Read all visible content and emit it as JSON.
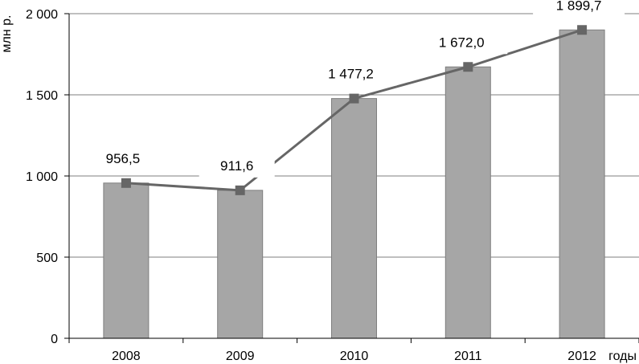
{
  "chart_data": {
    "type": "bar",
    "categories": [
      "2008",
      "2009",
      "2010",
      "2011",
      "2012"
    ],
    "values": [
      956.5,
      911.6,
      1477.2,
      1672.0,
      1899.7
    ],
    "data_labels": [
      "956,5",
      "911,6",
      "1 477,2",
      "1 672,0",
      "1 899,7"
    ],
    "overlay": "line",
    "title": "",
    "xlabel": "годы",
    "ylabel": "млн р.",
    "ylim": [
      0,
      2000
    ],
    "yticks": [
      0,
      500,
      1000,
      1500,
      2000
    ],
    "ytick_labels": [
      "0",
      "500",
      "1 000",
      "1 500",
      "2 000"
    ],
    "grid": true,
    "colors": {
      "bar": "#a6a6a6",
      "bar_edge": "#7f7f7f",
      "line": "#666666",
      "marker": "#666666",
      "grid": "#7f7f7f"
    }
  }
}
